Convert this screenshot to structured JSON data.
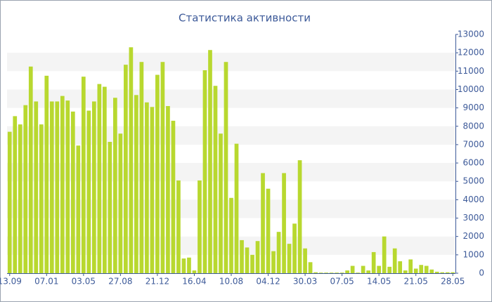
{
  "chart_data": {
    "type": "bar",
    "title": "Статистика активности",
    "categories": [
      "13.09",
      null,
      null,
      null,
      null,
      null,
      null,
      "07.01",
      null,
      null,
      null,
      null,
      null,
      null,
      "03.05",
      null,
      null,
      null,
      null,
      null,
      null,
      "27.08",
      null,
      null,
      null,
      null,
      null,
      null,
      "21.12",
      null,
      null,
      null,
      null,
      null,
      null,
      "16.04",
      null,
      null,
      null,
      null,
      null,
      null,
      "10.08",
      null,
      null,
      null,
      null,
      null,
      null,
      "04.12",
      null,
      null,
      null,
      null,
      null,
      null,
      "30.03",
      null,
      null,
      null,
      null,
      null,
      null,
      "07.05",
      null,
      null,
      null,
      null,
      null,
      null,
      "14.05",
      null,
      null,
      null,
      null,
      null,
      null,
      "21.05",
      null,
      null,
      null,
      null,
      null,
      null,
      "28.05"
    ],
    "values": [
      7700,
      8550,
      8100,
      9150,
      11250,
      9350,
      8100,
      10750,
      9350,
      9350,
      9650,
      9400,
      8800,
      6950,
      10700,
      8850,
      9350,
      10300,
      10150,
      7150,
      9550,
      7600,
      11350,
      12300,
      9700,
      11500,
      9300,
      9050,
      10800,
      11500,
      9100,
      8300,
      5050,
      800,
      850,
      150,
      5050,
      11050,
      12150,
      10200,
      7600,
      11500,
      4100,
      7050,
      1800,
      1400,
      1000,
      1750,
      5450,
      4600,
      1200,
      2250,
      5450,
      1600,
      2700,
      6150,
      1350,
      600,
      50,
      30,
      30,
      30,
      30,
      30,
      150,
      400,
      30,
      400,
      150,
      1150,
      400,
      2000,
      350,
      1350,
      650,
      150,
      750,
      250,
      450,
      400,
      200,
      80,
      50,
      50,
      50
    ],
    "color": "#b8d82f",
    "ylim": [
      0,
      13000
    ],
    "yticks": [
      0,
      1000,
      2000,
      3000,
      4000,
      5000,
      6000,
      7000,
      8000,
      9000,
      10000,
      11000,
      12000,
      13000
    ],
    "banded_grid": true
  }
}
